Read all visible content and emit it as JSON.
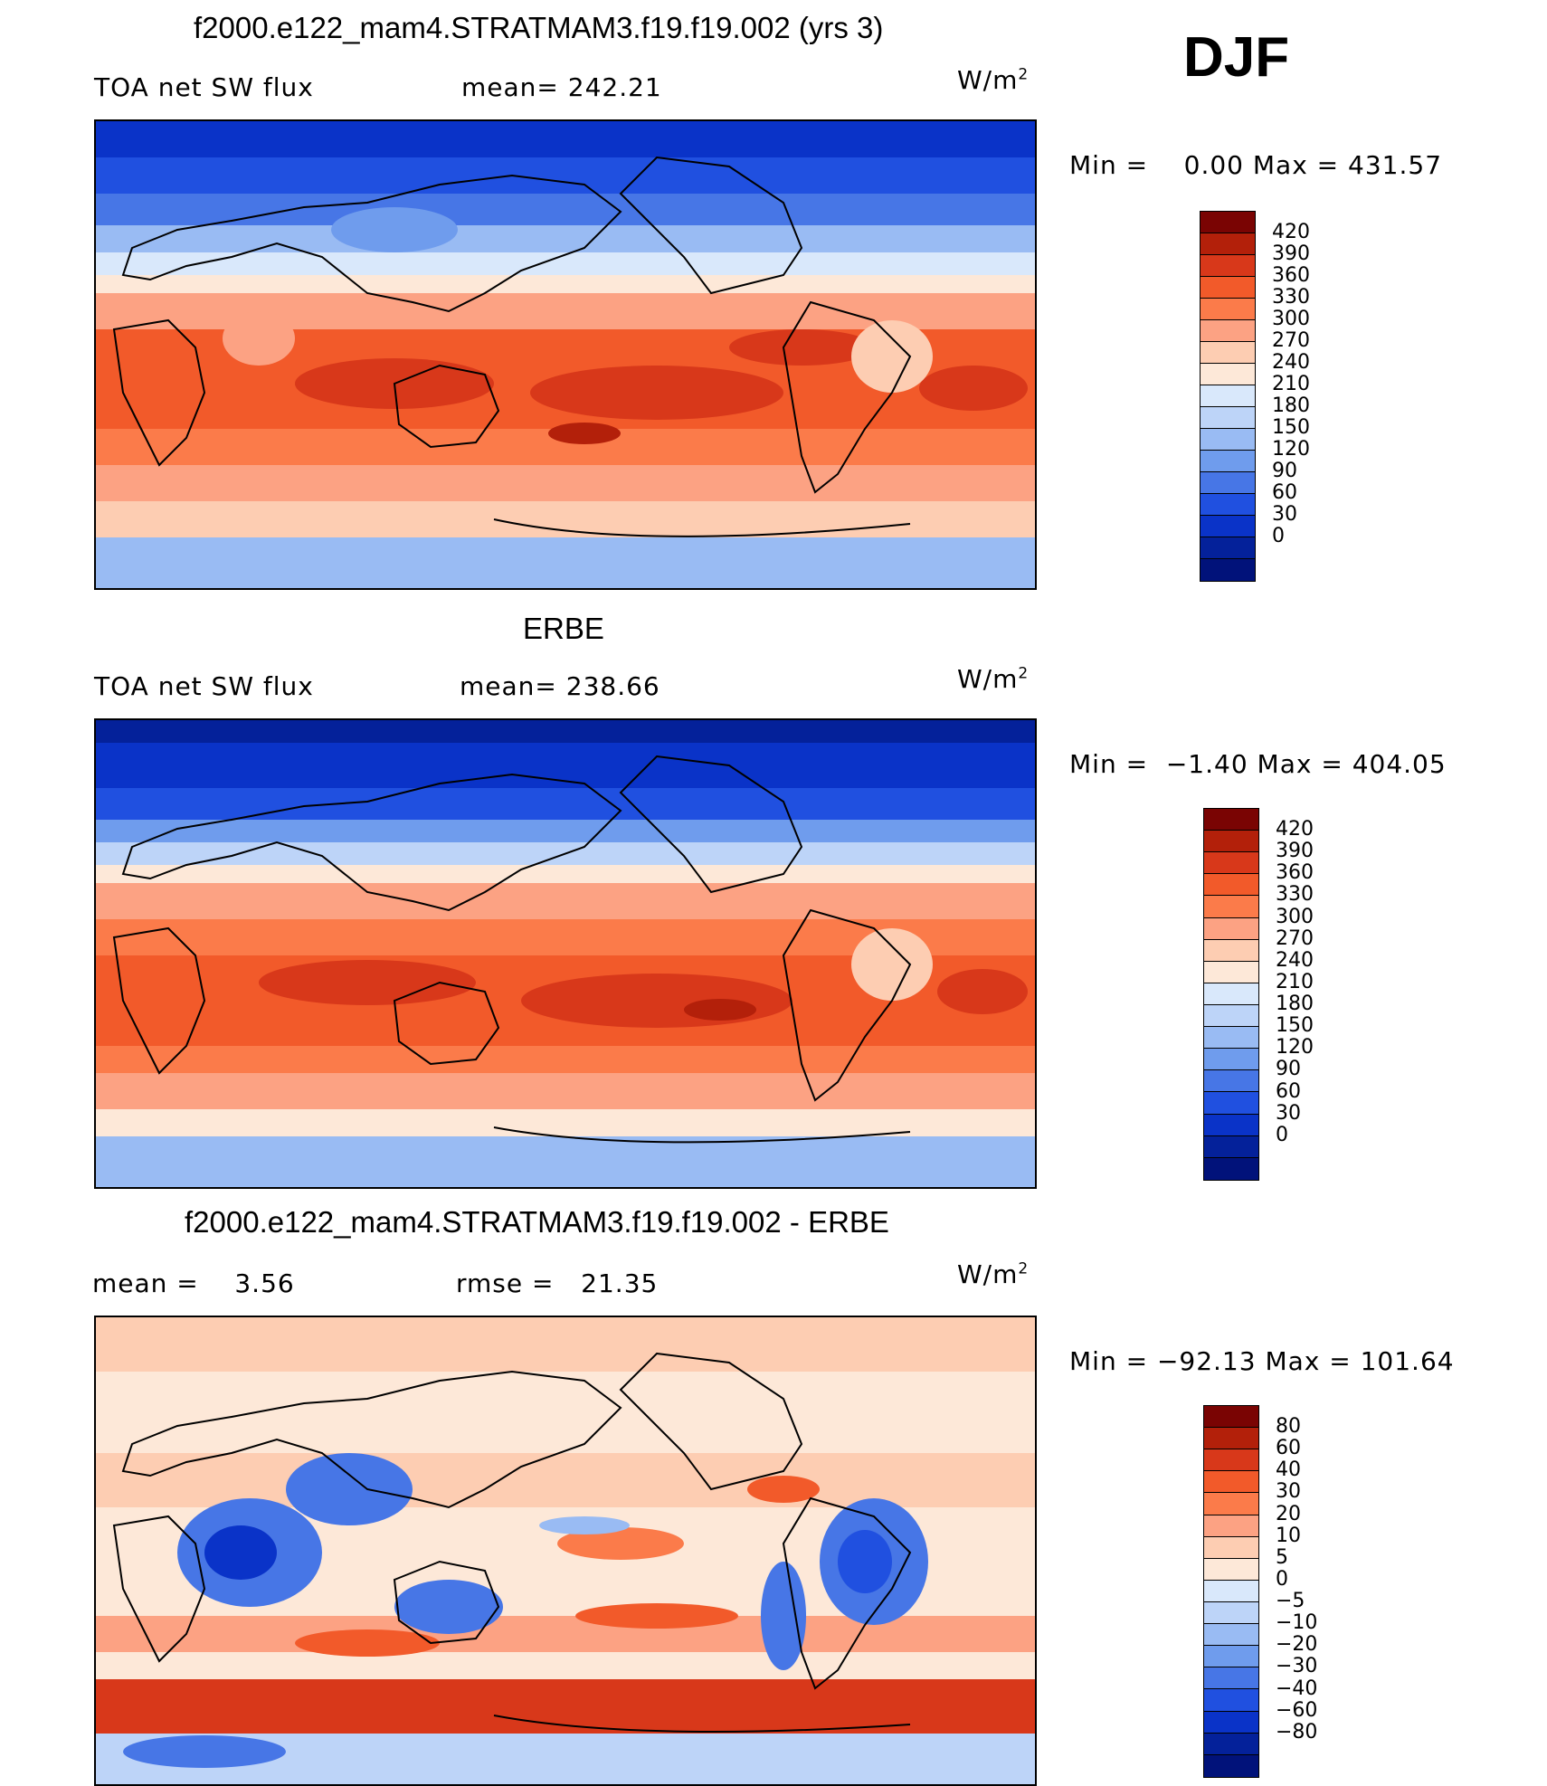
{
  "season": "DJF",
  "panels": [
    {
      "title": "f2000.e122_mam4.STRATMAM3.f19.f19.002 (yrs 3)",
      "left_text": "TOA net SW flux",
      "mid_text": "mean= 242.21",
      "units_base": "W/m",
      "units_exp": "2",
      "minmax": "Min =    0.00 Max = 431.57",
      "colorbar_colors": [
        "#7a0403",
        "#b3200a",
        "#d8381a",
        "#f25a2a",
        "#fb7b4a",
        "#fca283",
        "#fdcdb2",
        "#fde8d8",
        "#d9e8fb",
        "#bdd4f8",
        "#99bbf3",
        "#6f9ced",
        "#4776e6",
        "#2050e0",
        "#0a33c8",
        "#04219a",
        "#01127a"
      ],
      "colorbar_labels": [
        "420",
        "390",
        "360",
        "330",
        "300",
        "270",
        "240",
        "210",
        "180",
        "150",
        "120",
        "90",
        "60",
        "30",
        "0"
      ]
    },
    {
      "title": "ERBE",
      "left_text": "TOA net SW flux",
      "mid_text": "mean= 238.66",
      "units_base": "W/m",
      "units_exp": "2",
      "minmax": "Min =  −1.40 Max = 404.05",
      "colorbar_colors": [
        "#7a0403",
        "#b3200a",
        "#d8381a",
        "#f25a2a",
        "#fb7b4a",
        "#fca283",
        "#fdcdb2",
        "#fde8d8",
        "#d9e8fb",
        "#bdd4f8",
        "#99bbf3",
        "#6f9ced",
        "#4776e6",
        "#2050e0",
        "#0a33c8",
        "#04219a",
        "#01127a"
      ],
      "colorbar_labels": [
        "420",
        "390",
        "360",
        "330",
        "300",
        "270",
        "240",
        "210",
        "180",
        "150",
        "120",
        "90",
        "60",
        "30",
        "0"
      ]
    },
    {
      "title": "f2000.e122_mam4.STRATMAM3.f19.f19.002 - ERBE",
      "left_text": "mean =    3.56",
      "mid_text": "rmse =   21.35",
      "units_base": "W/m",
      "units_exp": "2",
      "minmax": "Min = −92.13 Max = 101.64",
      "colorbar_colors": [
        "#7a0403",
        "#b3200a",
        "#d8381a",
        "#f25a2a",
        "#fb7b4a",
        "#fca283",
        "#fdcdb2",
        "#fde8d8",
        "#d9e8fb",
        "#bdd4f8",
        "#99bbf3",
        "#6f9ced",
        "#4776e6",
        "#2050e0",
        "#0a33c8",
        "#04219a",
        "#01127a"
      ],
      "colorbar_labels": [
        "80",
        "60",
        "40",
        "30",
        "20",
        "10",
        "5",
        "0",
        "−5",
        "−10",
        "−20",
        "−30",
        "−40",
        "−60",
        "−80"
      ]
    }
  ]
}
